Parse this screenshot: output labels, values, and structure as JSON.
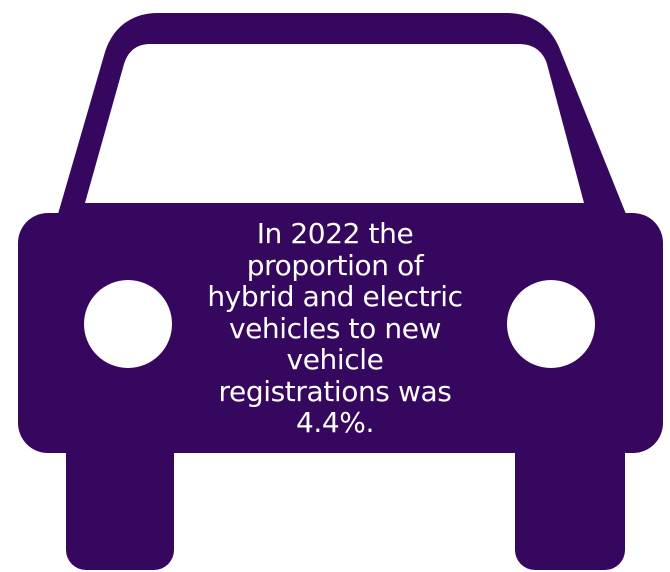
{
  "colors": {
    "car_fill": "#35075f",
    "window_fill": "#ffffff",
    "headlight_fill": "#ffffff",
    "text": "#ffffff"
  },
  "icon": {
    "name": "car-icon"
  },
  "caption": {
    "text": "In 2022 the proportion of hybrid and electric vehicles to new vehicle registrations was 4.4%."
  }
}
